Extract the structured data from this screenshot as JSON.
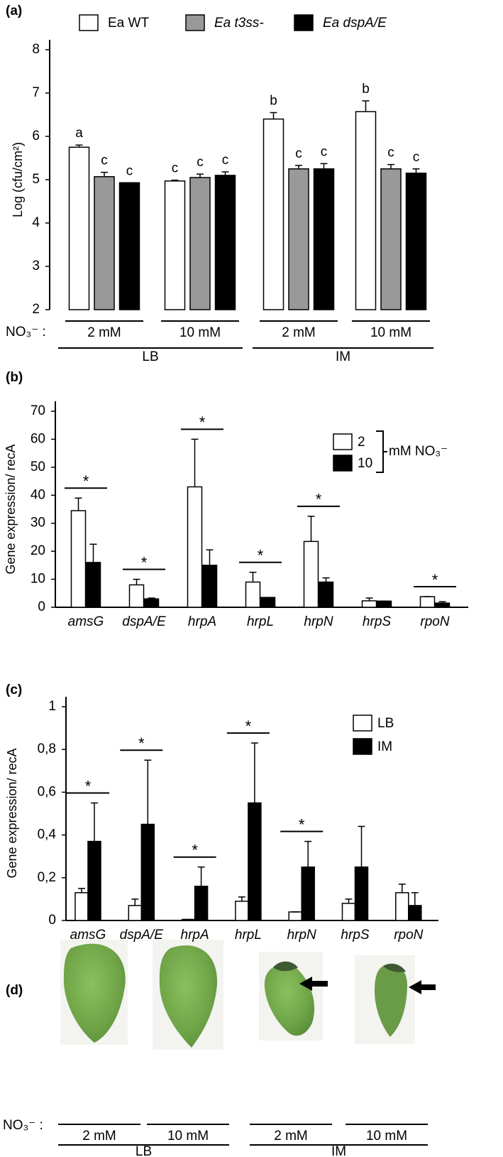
{
  "chart_data": [
    {
      "type": "bar",
      "panel": "(a)",
      "y_label": "Log (cfu/cm²)",
      "x_prefix": "NO₃⁻ :",
      "categories": [
        "2 mM",
        "10 mM",
        "2 mM",
        "10 mM"
      ],
      "groups": [
        "LB",
        "IM"
      ],
      "ylim": [
        2,
        8
      ],
      "yticks": [
        2,
        3,
        4,
        5,
        6,
        7,
        8
      ],
      "series": [
        {
          "name": "Ea WT",
          "color": "#ffffff",
          "values": [
            5.75,
            4.97,
            6.4,
            6.57
          ],
          "errors": [
            0.05,
            0.02,
            0.15,
            0.25
          ],
          "letters": [
            "a",
            "c",
            "b",
            "b"
          ]
        },
        {
          "name": "Ea t3ss-",
          "color": "#999999",
          "values": [
            5.07,
            5.05,
            5.25,
            5.25
          ],
          "errors": [
            0.1,
            0.08,
            0.08,
            0.1
          ],
          "letters": [
            "c",
            "c",
            "c",
            "c"
          ]
        },
        {
          "name": "Ea dspA/E",
          "color": "#000000",
          "values": [
            4.93,
            5.1,
            5.25,
            5.15
          ],
          "errors": [
            0.0,
            0.08,
            0.12,
            0.1
          ],
          "letters": [
            "c",
            "c",
            "c",
            "c"
          ]
        }
      ]
    },
    {
      "type": "bar",
      "panel": "(b)",
      "y_label": "Gene expression/ recA",
      "categories": [
        "amsG",
        "dspA/E",
        "hrpA",
        "hrpL",
        "hrpN",
        "hrpS",
        "rpoN"
      ],
      "ylim": [
        0,
        70
      ],
      "yticks": [
        0,
        10,
        20,
        30,
        40,
        50,
        60,
        70
      ],
      "legend_note": "mM NO₃⁻",
      "significance": [
        "*",
        "*",
        "*",
        "*",
        "*",
        null,
        "*"
      ],
      "series": [
        {
          "name": "2",
          "color": "#ffffff",
          "values": [
            34.5,
            8,
            43,
            9,
            23.5,
            2.3,
            3.8
          ],
          "errors": [
            4.5,
            2,
            17,
            3.5,
            9,
            1,
            0
          ]
        },
        {
          "name": "10",
          "color": "#000000",
          "values": [
            16,
            3,
            15,
            3.5,
            9,
            2.2,
            1.5
          ],
          "errors": [
            6.5,
            0.3,
            5.5,
            0,
            1.5,
            0,
            0.5
          ]
        }
      ]
    },
    {
      "type": "bar",
      "panel": "(c)",
      "y_label": "Gene expression/ recA",
      "categories": [
        "amsG",
        "dspA/E",
        "hrpA",
        "hrpL",
        "hrpN",
        "hrpS",
        "rpoN"
      ],
      "ylim": [
        0,
        1
      ],
      "yticks": [
        0,
        {
          "value": 0.2,
          "label": "0,2"
        },
        {
          "value": 0.4,
          "label": "0,4"
        },
        {
          "value": 0.6,
          "label": "0,6"
        },
        {
          "value": 0.8,
          "label": "0,8"
        },
        1
      ],
      "significance": [
        "*",
        "*",
        "*",
        "*",
        "*",
        null,
        null
      ],
      "series": [
        {
          "name": "LB",
          "color": "#ffffff",
          "values": [
            0.13,
            0.07,
            0.005,
            0.09,
            0.04,
            0.08,
            0.13
          ],
          "errors": [
            0.02,
            0.03,
            0,
            0.02,
            0,
            0.02,
            0.04
          ]
        },
        {
          "name": "IM",
          "color": "#000000",
          "values": [
            0.37,
            0.45,
            0.16,
            0.55,
            0.25,
            0.25,
            0.07
          ],
          "errors": [
            0.18,
            0.3,
            0.09,
            0.28,
            0.12,
            0.19,
            0.06
          ]
        }
      ]
    }
  ],
  "leaf_panel": {
    "panel": "(d)",
    "x_prefix": "NO₃⁻ :",
    "categories": [
      "2 mM",
      "10 mM",
      "2 mM",
      "10 mM"
    ],
    "groups": [
      "LB",
      "IM"
    ]
  }
}
